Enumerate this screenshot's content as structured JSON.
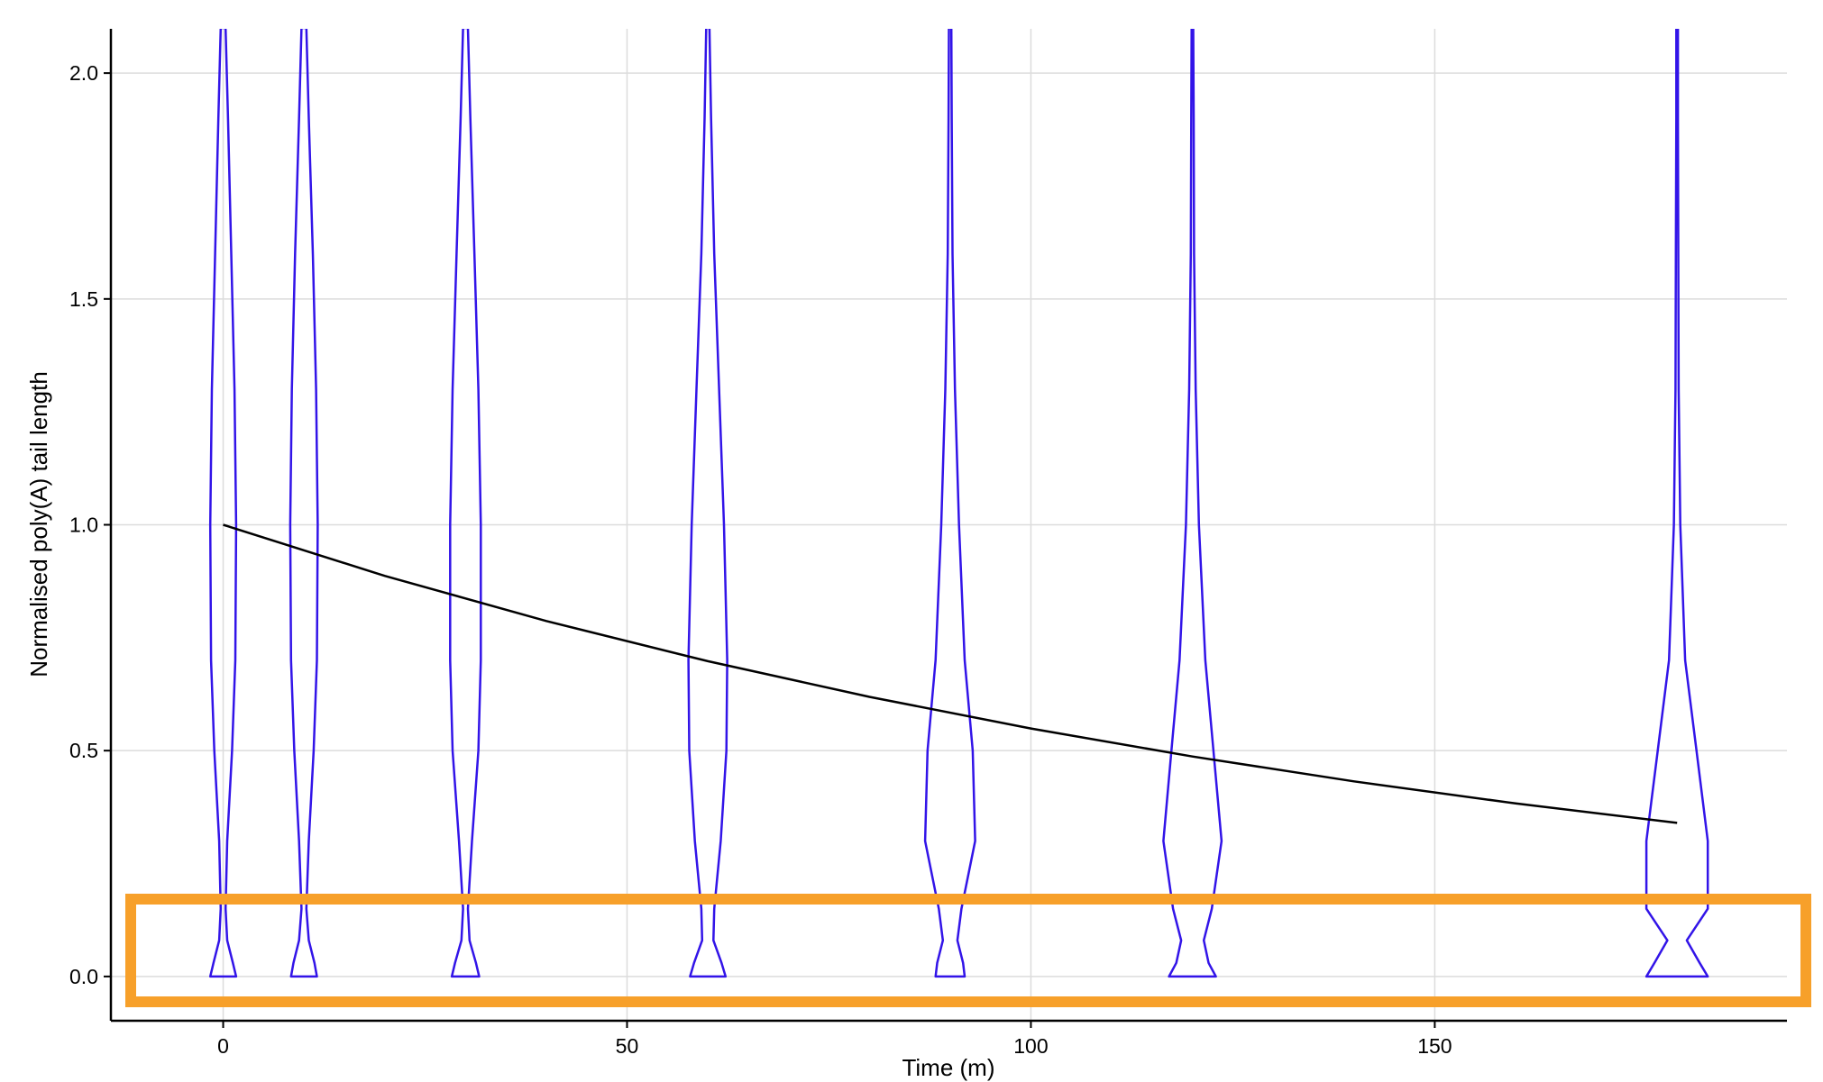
{
  "chart_data": {
    "type": "violin",
    "x_label": "Time (m)",
    "y_label": "Normalised poly(A) tail length",
    "xlim": [
      -13.9,
      193.6
    ],
    "ylim": [
      -0.098,
      2.098
    ],
    "xticks": [
      0,
      50,
      100,
      150
    ],
    "yticks": [
      {
        "value": 0,
        "label": "0.0"
      },
      0.5,
      {
        "value": 1,
        "label": "1.0"
      },
      1.5,
      {
        "value": 2,
        "label": "2.0"
      }
    ],
    "grid": true,
    "violins": {
      "color": "#3214e8",
      "x": [
        0,
        10,
        30,
        60,
        90,
        120,
        180
      ],
      "levels": [
        0,
        0.03,
        0.08,
        0.15,
        0.3,
        0.5,
        0.7,
        1.0,
        1.3,
        1.6,
        1.9,
        2.1
      ],
      "half_widths": [
        [
          1.6,
          1.2,
          0.5,
          0.3,
          0.5,
          1.1,
          1.5,
          1.6,
          1.4,
          1.0,
          0.6,
          0.3
        ],
        [
          1.6,
          1.3,
          0.6,
          0.3,
          0.6,
          1.2,
          1.6,
          1.7,
          1.5,
          1.1,
          0.6,
          0.3
        ],
        [
          1.7,
          1.3,
          0.5,
          0.3,
          0.8,
          1.6,
          1.9,
          1.9,
          1.6,
          1.1,
          0.6,
          0.3
        ],
        [
          2.2,
          1.7,
          0.7,
          0.8,
          1.6,
          2.3,
          2.4,
          2.0,
          1.4,
          0.8,
          0.4,
          0.2
        ],
        [
          1.8,
          1.6,
          0.9,
          1.4,
          3.1,
          2.8,
          1.8,
          1.1,
          0.6,
          0.3,
          0.2,
          0.15
        ],
        [
          2.9,
          2.0,
          1.4,
          2.4,
          3.6,
          2.6,
          1.6,
          0.8,
          0.4,
          0.2,
          0.15,
          0.1
        ],
        [
          3.8,
          2.8,
          1.2,
          3.8,
          3.8,
          2.4,
          1.0,
          0.4,
          0.2,
          0.15,
          0.1,
          0.1
        ]
      ]
    },
    "fit": {
      "color": "#000000",
      "x": [
        0,
        20,
        40,
        60,
        80,
        100,
        120,
        140,
        160,
        180
      ],
      "values": [
        1,
        0.887,
        0.787,
        0.698,
        0.619,
        0.549,
        0.487,
        0.432,
        0.383,
        0.34
      ]
    }
  }
}
